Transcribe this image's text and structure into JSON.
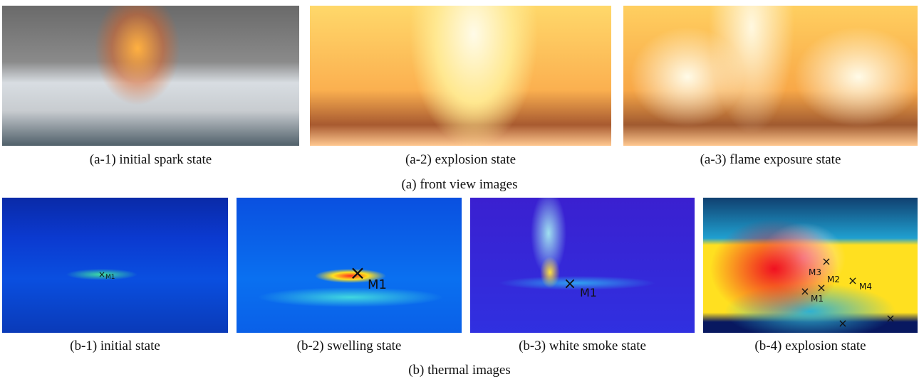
{
  "figure": {
    "row_a": {
      "caption": "(a) front view images",
      "panels": [
        {
          "caption": "(a-1) initial spark state"
        },
        {
          "caption": "(a-2) explosion state"
        },
        {
          "caption": "(a-3) flame exposure state"
        }
      ]
    },
    "row_b": {
      "caption": "(b) thermal images",
      "panels": [
        {
          "caption": "(b-1) initial state",
          "markers": [
            "M1"
          ]
        },
        {
          "caption": "(b-2) swelling state",
          "markers": [
            "M1"
          ]
        },
        {
          "caption": "(b-3) white smoke state",
          "markers": [
            "M1"
          ]
        },
        {
          "caption": "(b-4) explosion state",
          "markers": [
            "M1",
            "M2",
            "M3",
            "M4"
          ]
        }
      ]
    }
  }
}
